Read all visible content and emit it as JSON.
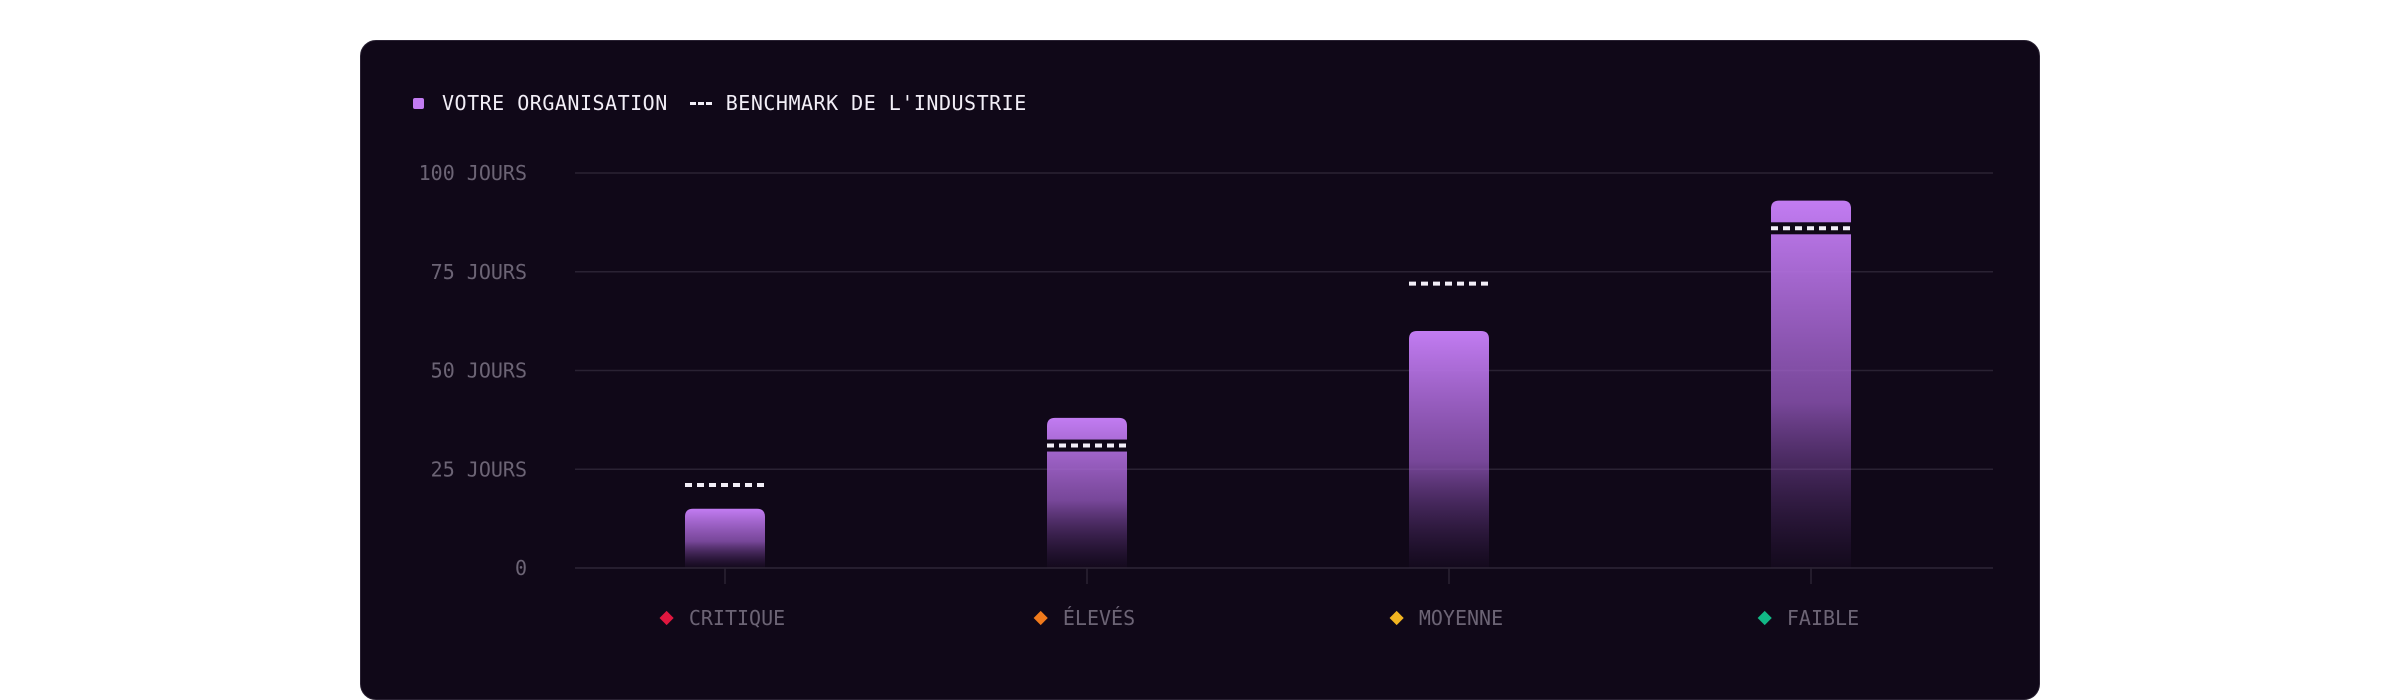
{
  "legend": {
    "org_label": "VOTRE ORGANISATION",
    "benchmark_label": "BENCHMARK DE L'INDUSTRIE"
  },
  "chart_data": {
    "type": "bar",
    "categories": [
      "CRITIQUE",
      "ÉLEVÉS",
      "MOYENNE",
      "FAIBLE"
    ],
    "category_marker_colors": [
      "#e0173f",
      "#f07a1c",
      "#f2b521",
      "#12b886"
    ],
    "series": [
      {
        "name": "VOTRE ORGANISATION",
        "values": [
          15,
          38,
          60,
          93
        ]
      },
      {
        "name": "BENCHMARK DE L'INDUSTRIE",
        "values": [
          21,
          31,
          72,
          86
        ]
      }
    ],
    "ylim": [
      0,
      100
    ],
    "yticks": [
      0,
      25,
      50,
      75,
      100
    ],
    "ytick_labels": [
      "0",
      "25 JOURS",
      "50 JOURS",
      "75 JOURS",
      "100 JOURS"
    ],
    "grid": true,
    "legend_position": "top-left",
    "colors": {
      "bar_top": "#c27cf2",
      "benchmark": "#f2eef7",
      "grid": "#2a2233",
      "tick_label": "#6c6475"
    }
  }
}
